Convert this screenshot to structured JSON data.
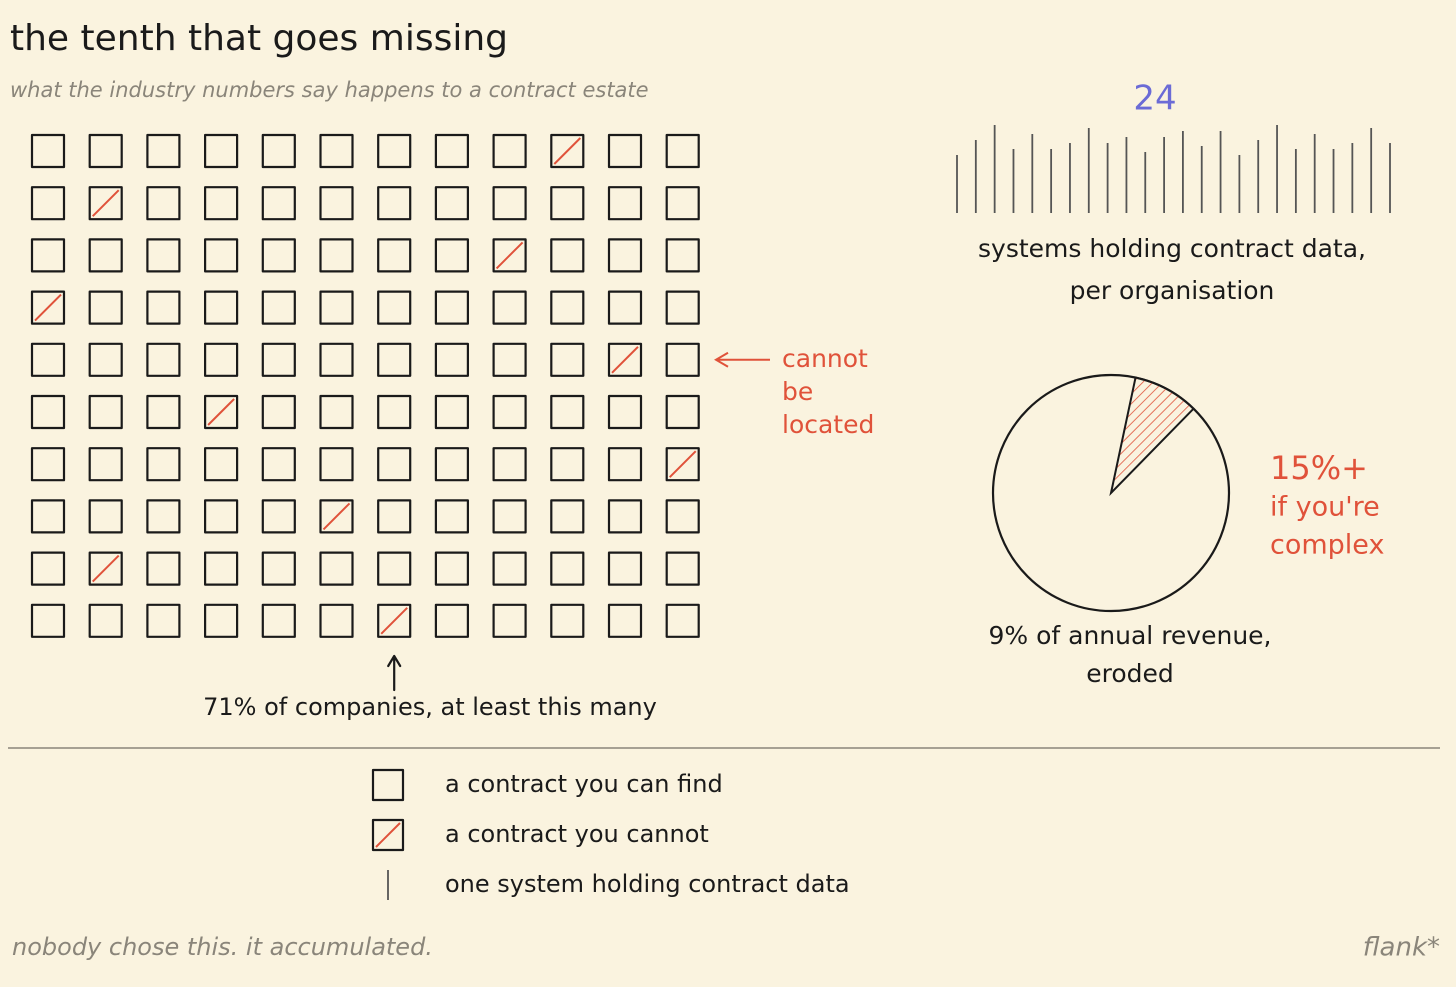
{
  "title": "the tenth that goes missing",
  "subtitle": "what the industry numbers say happens to a contract estate",
  "waffle": {
    "columns": 12,
    "rows": 10,
    "missing": [
      [
        0,
        9
      ],
      [
        1,
        1
      ],
      [
        2,
        8
      ],
      [
        3,
        0
      ],
      [
        4,
        10
      ],
      [
        5,
        3
      ],
      [
        6,
        11
      ],
      [
        7,
        5
      ],
      [
        8,
        1
      ],
      [
        9,
        6
      ]
    ],
    "annotation": [
      "cannot",
      "be",
      "located"
    ],
    "caption": "71% of companies, at least this many"
  },
  "systems": {
    "count": 24,
    "caption": [
      "systems holding contract data,",
      "per organisation"
    ]
  },
  "revenue": {
    "value": 9,
    "caption": [
      "9% of annual revenue,",
      "eroded"
    ],
    "complex_note": [
      "15%+",
      "if you're",
      "complex"
    ]
  },
  "legend": [
    {
      "label": "a contract you can find"
    },
    {
      "label": "a contract you cannot"
    },
    {
      "label": "one system holding contract data"
    }
  ],
  "footer": "nobody chose this. it accumulated.",
  "signature": "flank*"
}
